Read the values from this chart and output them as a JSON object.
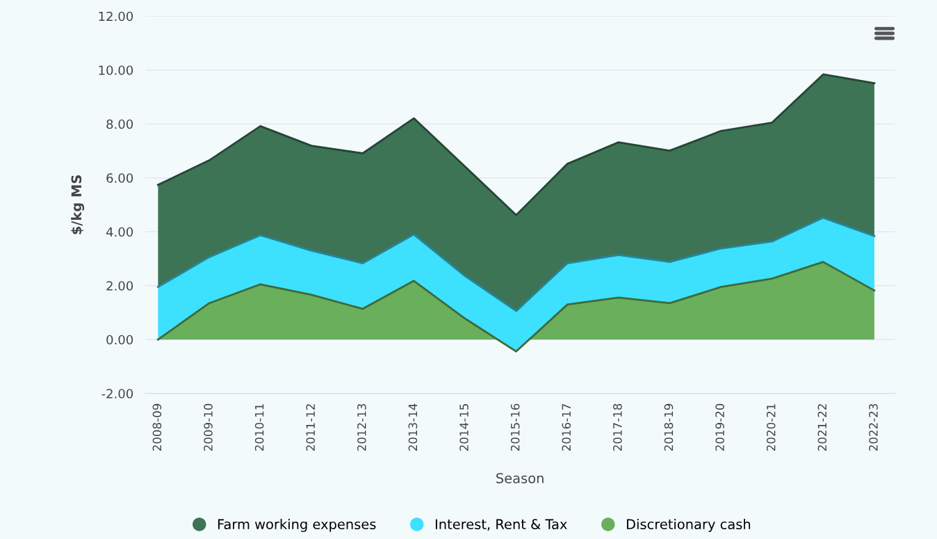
{
  "chart_data": {
    "type": "area",
    "stacked": true,
    "xlabel": "Season",
    "ylabel": "$/kg MS",
    "categories": [
      "2008-09",
      "2009-10",
      "2010-11",
      "2011-12",
      "2012-13",
      "2013-14",
      "2014-15",
      "2015-16",
      "2016-17",
      "2017-18",
      "2018-19",
      "2019-20",
      "2020-21",
      "2021-22",
      "2022-23"
    ],
    "series": [
      {
        "name": "Discretionary cash",
        "color": "#6aaf5c",
        "values": [
          0.0,
          1.35,
          2.05,
          1.66,
          1.14,
          2.18,
          0.78,
          -0.44,
          1.3,
          1.56,
          1.35,
          1.95,
          2.26,
          2.88,
          1.82
        ]
      },
      {
        "name": "Interest, Rent & Tax",
        "color": "#3de0fd",
        "values": [
          1.95,
          1.71,
          1.82,
          1.64,
          1.69,
          1.72,
          1.58,
          1.5,
          1.53,
          1.58,
          1.53,
          1.43,
          1.38,
          1.64,
          2.02
        ]
      },
      {
        "name": "Farm working expenses",
        "color": "#3d7456",
        "values": [
          3.79,
          3.59,
          4.05,
          3.89,
          4.08,
          4.31,
          4.06,
          3.56,
          3.69,
          4.18,
          4.13,
          4.36,
          4.41,
          5.32,
          5.67
        ]
      }
    ],
    "ylim": [
      -2,
      12
    ],
    "yticks": [
      {
        "value": -2,
        "label": "-2.00"
      },
      {
        "value": 0,
        "label": "0.00"
      },
      {
        "value": 2,
        "label": "2.00"
      },
      {
        "value": 4,
        "label": "4.00"
      },
      {
        "value": 6,
        "label": "6.00"
      },
      {
        "value": 8,
        "label": "8.00"
      },
      {
        "value": 10,
        "label": "10.00"
      },
      {
        "value": 12,
        "label": "12.00"
      }
    ],
    "grid": "y",
    "legend": "bottom"
  }
}
